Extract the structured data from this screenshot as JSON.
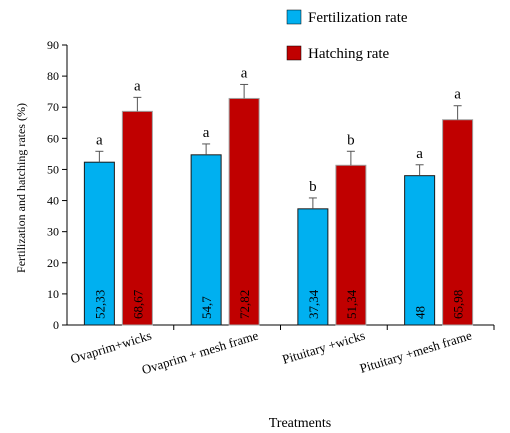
{
  "chart_data": {
    "type": "bar",
    "xlabel": "Treatments",
    "ylabel": "Fertilization  and hatching rates (%)",
    "ylim": [
      0,
      90
    ],
    "yticks": [
      0,
      10,
      20,
      30,
      40,
      50,
      60,
      70,
      80,
      90
    ],
    "categories": [
      "Ovaprim+wicks",
      "Ovaprim + mesh frame",
      "Pituitary +wicks",
      "Pituitary +mesh frame"
    ],
    "legend_position": "top-right",
    "series": [
      {
        "name": "Fertilization rate",
        "color": "#00b0f0",
        "values": [
          52.33,
          54.7,
          37.34,
          48
        ],
        "value_labels": [
          "52,33",
          "54,7",
          "37,34",
          "48"
        ],
        "errors": [
          3.5,
          3.5,
          3.5,
          3.5
        ],
        "significance": [
          "a",
          "a",
          "b",
          "a"
        ]
      },
      {
        "name": "Hatching rate",
        "color": "#c00000",
        "values": [
          68.67,
          72.82,
          51.34,
          65.98
        ],
        "value_labels": [
          "68,67",
          "72,82",
          "51,34",
          "65,98"
        ],
        "errors": [
          4.5,
          4.5,
          4.5,
          4.5
        ],
        "significance": [
          "a",
          "a",
          "b",
          "a"
        ]
      }
    ]
  }
}
